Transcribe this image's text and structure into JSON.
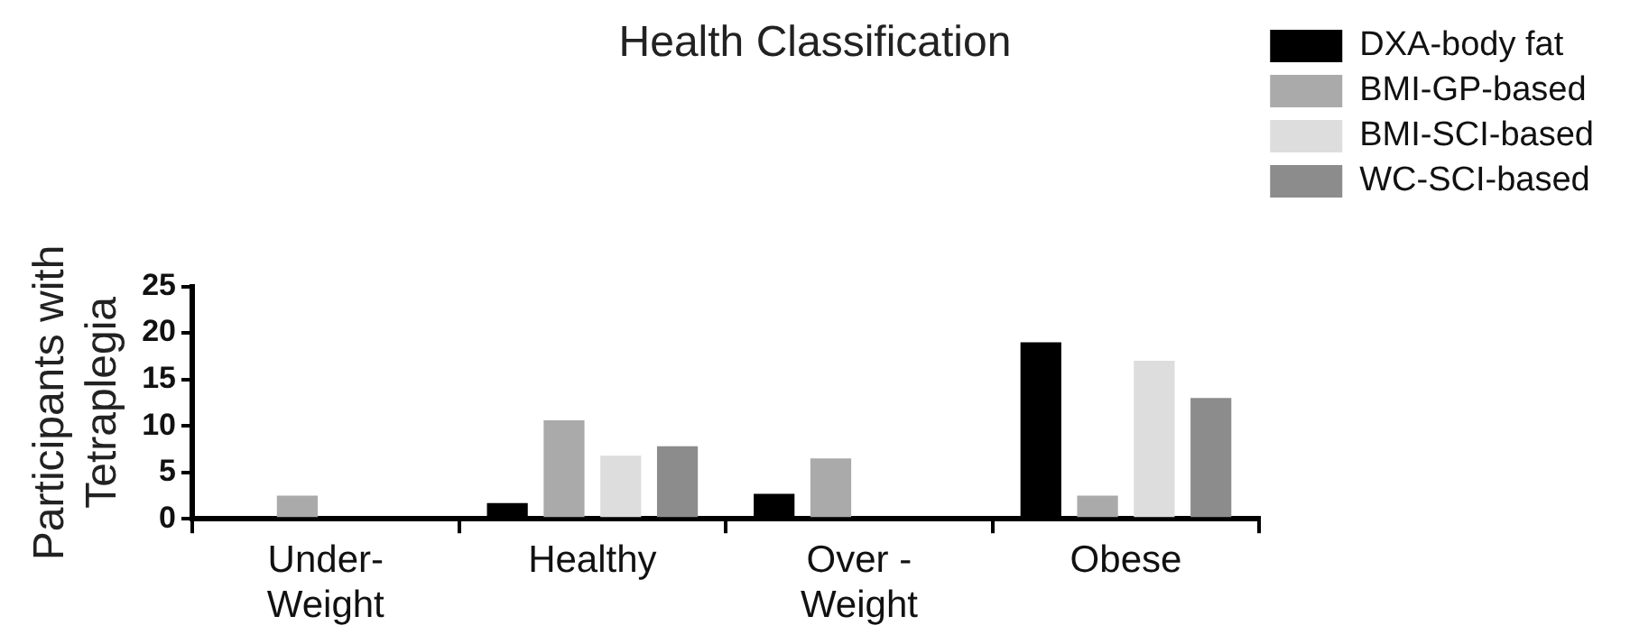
{
  "chart_data": {
    "type": "bar",
    "title": "Health Classification",
    "ylabel": "Participants with\nTetraplegia",
    "categories": [
      "Under-\nWeight",
      "Healthy",
      "Over -\nWeight",
      "Obese"
    ],
    "series": [
      {
        "name": "DXA-body fat",
        "color": "#000000",
        "values": [
          0,
          1.7,
          2.7,
          19
        ]
      },
      {
        "name": "BMI-GP-based",
        "color": "#aaaaaa",
        "values": [
          2.5,
          10.6,
          6.5,
          2.5
        ]
      },
      {
        "name": "BMI-SCI-based",
        "color": "#dddddd",
        "values": [
          0,
          6.8,
          0,
          17
        ]
      },
      {
        "name": "WC-SCI-based",
        "color": "#8c8c8c",
        "values": [
          0,
          7.8,
          0,
          13
        ]
      }
    ],
    "ylim": [
      0,
      25
    ],
    "yticks": [
      0,
      5,
      10,
      15,
      20,
      25
    ],
    "grid": false,
    "legend": "right"
  }
}
